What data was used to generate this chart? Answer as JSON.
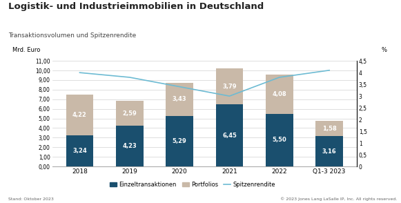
{
  "title": "Logistik- und Industrieimmobilien in Deutschland",
  "subtitle": "Transaktionsvolumen und Spitzenrendite",
  "ylabel_left": "Mrd. Euro",
  "ylabel_right": "%",
  "categories": [
    "2018",
    "2019",
    "2020",
    "2021",
    "2022",
    "Q1-3 2023"
  ],
  "einzeltransaktionen": [
    3.24,
    4.23,
    5.29,
    6.45,
    5.5,
    3.16
  ],
  "portfolios": [
    4.22,
    2.59,
    3.43,
    3.79,
    4.08,
    1.58
  ],
  "spitzenrendite": [
    4.0,
    3.8,
    3.4,
    3.0,
    3.8,
    4.1
  ],
  "ylim_left": [
    0,
    11
  ],
  "ylim_right": [
    0,
    4.5
  ],
  "yticks_left": [
    0.0,
    1.0,
    2.0,
    3.0,
    4.0,
    5.0,
    6.0,
    7.0,
    8.0,
    9.0,
    10.0,
    11.0
  ],
  "ytick_labels_left": [
    "0,00",
    "1,00",
    "2,00",
    "3,00",
    "4,00",
    "5,00",
    "6,00",
    "7,00",
    "8,00",
    "9,00",
    "10,00",
    "11,00"
  ],
  "yticks_right": [
    0,
    0.5,
    1.0,
    1.5,
    2.0,
    2.5,
    3.0,
    3.5,
    4.0,
    4.5
  ],
  "ytick_labels_right": [
    "0",
    "0,5",
    "1",
    "1,5",
    "2",
    "2,5",
    "3",
    "3,5",
    "4",
    "4,5"
  ],
  "color_einzeltransaktionen": "#1a4f6e",
  "color_portfolios": "#c9b9a8",
  "color_spitzenrendite": "#6dbbd3",
  "bar_width": 0.55,
  "footer_left": "Stand: Oktober 2023",
  "footer_right": "© 2023 Jones Lang LaSalle IP, Inc. All rights reserved.",
  "legend_labels": [
    "Einzeltransaktionen",
    "Portfolios",
    "Spitzenrendite"
  ],
  "background_color": "#ffffff"
}
